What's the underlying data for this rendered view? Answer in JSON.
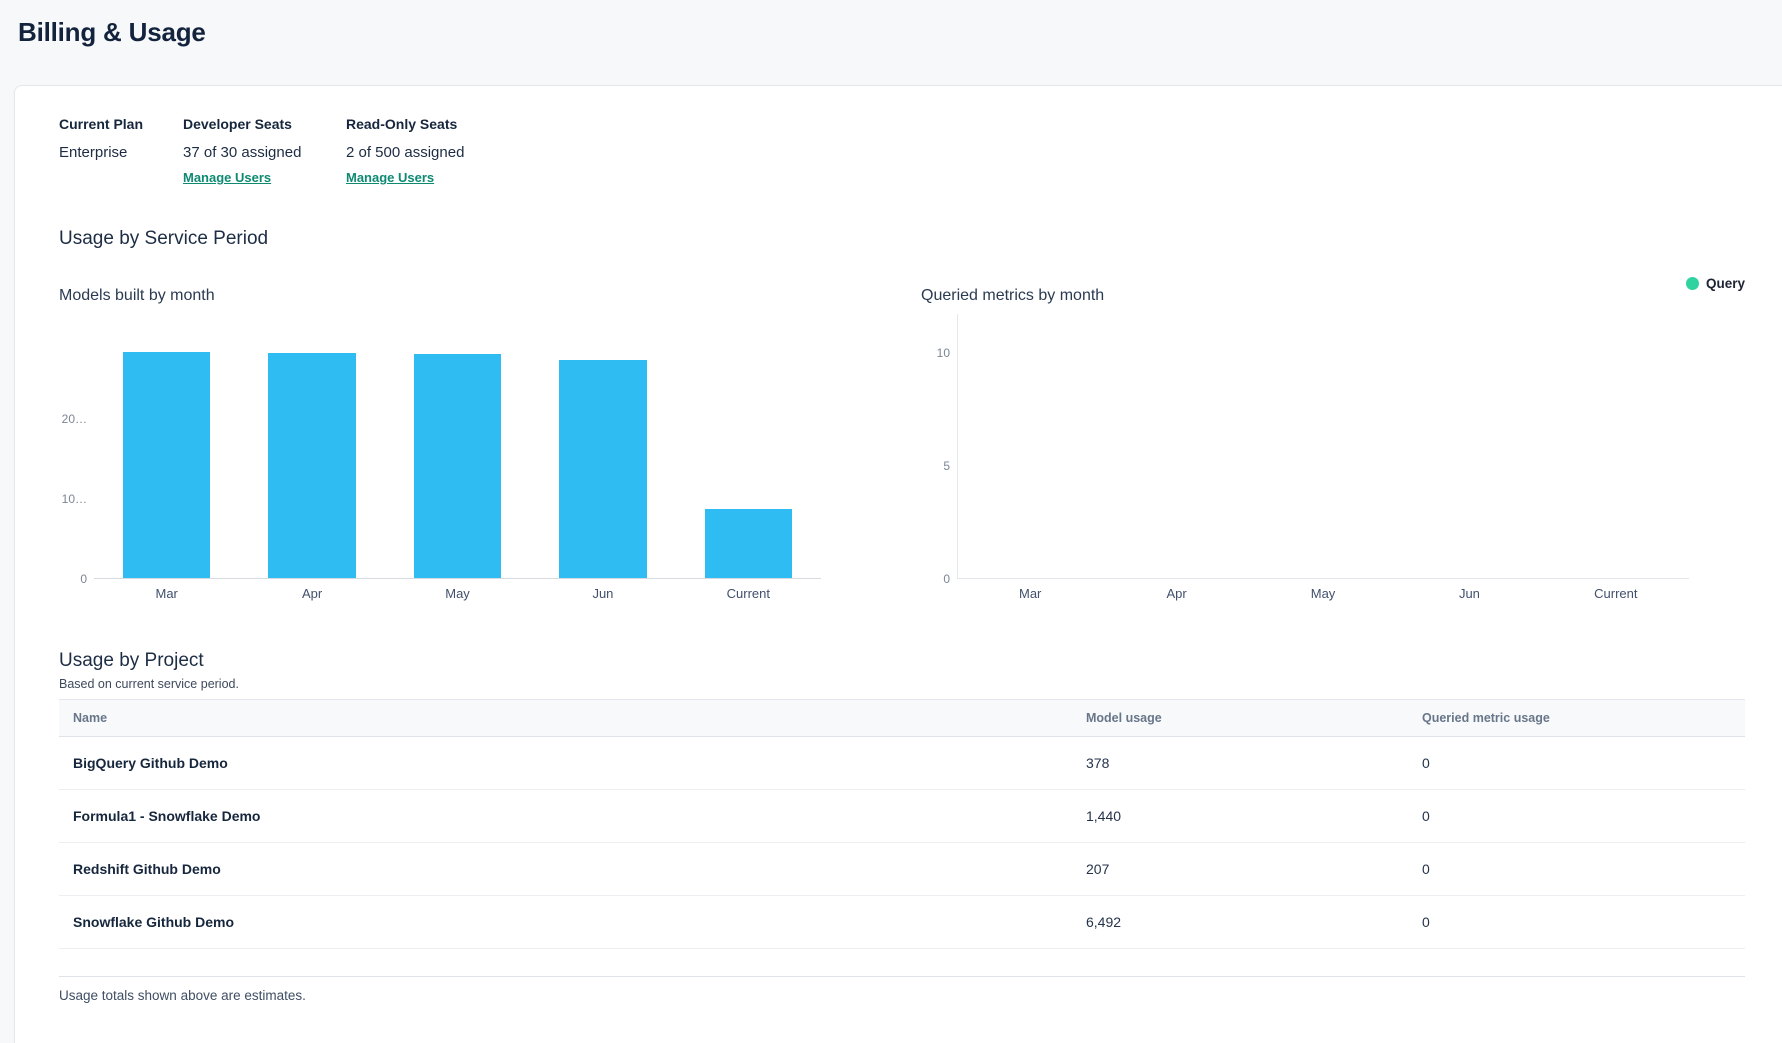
{
  "page": {
    "title": "Billing & Usage"
  },
  "plan": {
    "columns": [
      {
        "label": "Current Plan",
        "value": "Enterprise"
      },
      {
        "label": "Developer Seats",
        "value": "37 of 30 assigned",
        "link": "Manage Users"
      },
      {
        "label": "Read-Only Seats",
        "value": "2 of 500 assigned",
        "link": "Manage Users"
      }
    ]
  },
  "sections": {
    "service_period_title": "Usage by Service Period",
    "project_title": "Usage by Project",
    "project_subtitle": "Based on current service period."
  },
  "chart_data": [
    {
      "type": "bar",
      "title": "Models built by month",
      "categories": [
        "Mar",
        "Apr",
        "May",
        "Jun",
        "Current"
      ],
      "values": [
        28250,
        28150,
        27950,
        27200,
        8600
      ],
      "xlabel": "",
      "ylabel": "",
      "ylim": [
        0,
        33125
      ],
      "yticks": [
        {
          "value": 0,
          "label": "0"
        },
        {
          "value": 10000,
          "label": "10…"
        },
        {
          "value": 20000,
          "label": "20…"
        }
      ],
      "bar_color": "#2fbcf2",
      "grid": false,
      "legend_position": "none"
    },
    {
      "type": "bar",
      "title": "Queried metrics by month",
      "categories": [
        "Mar",
        "Apr",
        "May",
        "Jun",
        "Current"
      ],
      "series": [
        {
          "name": "Query",
          "values": [
            0,
            0,
            0,
            0,
            0
          ]
        }
      ],
      "xlabel": "",
      "ylabel": "",
      "ylim": [
        0,
        11.7
      ],
      "yticks": [
        {
          "value": 0,
          "label": "0"
        },
        {
          "value": 5,
          "label": "5"
        },
        {
          "value": 10,
          "label": "10"
        }
      ],
      "bar_color": "#2fd3a0",
      "grid": false,
      "legend": {
        "position": "top-right",
        "entries": [
          {
            "label": "Query",
            "color": "#2fd3a0"
          }
        ]
      }
    }
  ],
  "project_section": {
    "table": {
      "headers": [
        "Name",
        "Model usage",
        "Queried metric usage"
      ],
      "rows": [
        {
          "name": "BigQuery Github Demo",
          "model_usage": "378",
          "queried_metric_usage": "0"
        },
        {
          "name": "Formula1 - Snowflake Demo",
          "model_usage": "1,440",
          "queried_metric_usage": "0"
        },
        {
          "name": "Redshift Github Demo",
          "model_usage": "207",
          "queried_metric_usage": "0"
        },
        {
          "name": "Snowflake Github Demo",
          "model_usage": "6,492",
          "queried_metric_usage": "0"
        }
      ]
    },
    "footnote": "Usage totals shown above are estimates."
  },
  "colors": {
    "page_background": "#f7f8f9",
    "card_background": "#ffffff",
    "link_teal": "#0e8a73",
    "bar_blue": "#2fbcf2",
    "legend_green": "#2fd3a0"
  }
}
